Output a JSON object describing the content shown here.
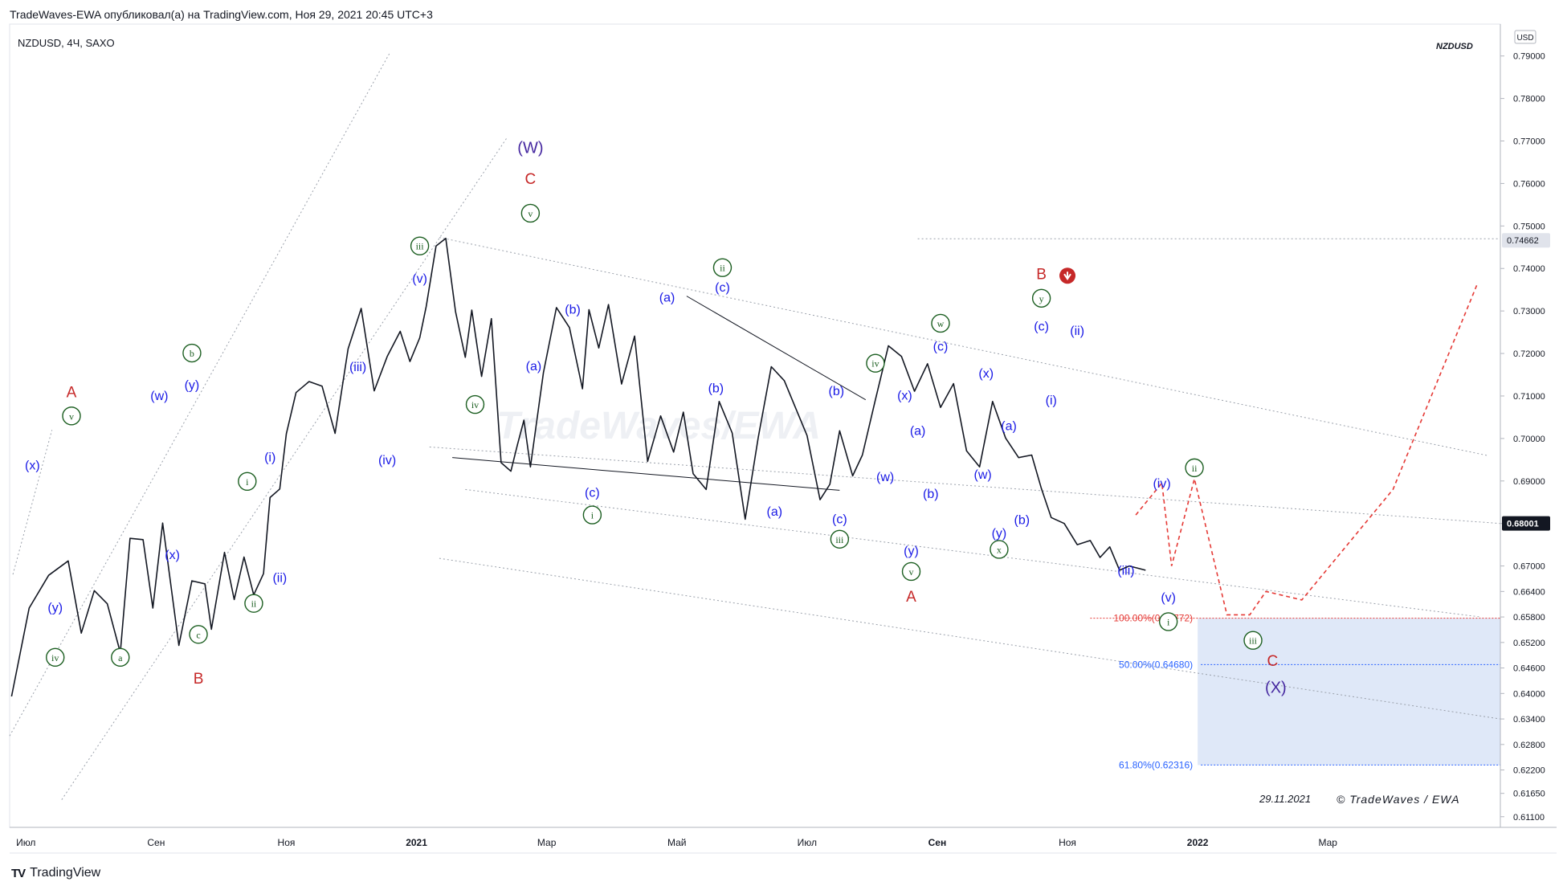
{
  "header": {
    "text": "TradeWaves-EWA опубликовал(а) на TradingView.com, Ноя 29, 2021 20:45 UTC+3",
    "symbol": "NZDUSD, 4Ч, SAXO",
    "corner_symbol": "NZDUSD",
    "currency": "USD",
    "date_stamp": "29.11.2021",
    "copyright": "© TradeWaves / EWA",
    "watermark": "TradeWaves/EWA",
    "footer": "TradingView"
  },
  "chart_data": {
    "type": "line",
    "title": "NZDUSD, 4Ч, SAXO",
    "ylim": [
      0.6085,
      0.7975
    ],
    "yticks": [
      "0.79000",
      "0.78000",
      "0.77000",
      "0.76000",
      "0.75000",
      "0.74000",
      "0.73000",
      "0.72000",
      "0.71000",
      "0.70000",
      "0.69000",
      "0.68000",
      "0.67000",
      "0.66400",
      "0.65800",
      "0.65200",
      "0.64600",
      "0.64000",
      "0.63400",
      "0.62800",
      "0.62200",
      "0.61650",
      "0.61100"
    ],
    "ytick_values": [
      0.79,
      0.78,
      0.77,
      0.76,
      0.75,
      0.74,
      0.73,
      0.72,
      0.71,
      0.7,
      0.69,
      0.68,
      0.67,
      0.664,
      0.658,
      0.652,
      0.646,
      0.64,
      0.634,
      0.628,
      0.622,
      0.6165,
      0.611
    ],
    "xticks": [
      "Июл",
      "Сен",
      "Ноя",
      "2021",
      "Мар",
      "Май",
      "Июл",
      "Сен",
      "Ноя",
      "2022",
      "Мар"
    ],
    "xtick_bold": [
      false,
      false,
      false,
      true,
      false,
      false,
      false,
      true,
      false,
      true,
      false
    ],
    "xtick_t": [
      0.5,
      2.5,
      4.5,
      6.5,
      8.5,
      10.5,
      12.5,
      14.5,
      16.5,
      18.5,
      20.5
    ],
    "xlim": [
      0.25,
      23.15
    ],
    "price_labels": [
      {
        "label": "0.74662",
        "value": 0.74662,
        "style": "light"
      },
      {
        "label": "0.68001",
        "value": 0.68001,
        "style": "dark"
      }
    ],
    "series": [
      {
        "name": "NZDUSD",
        "x": [
          0.28,
          0.55,
          0.85,
          1.15,
          1.35,
          1.55,
          1.75,
          1.95,
          2.1,
          2.3,
          2.45,
          2.6,
          2.85,
          3.05,
          3.25,
          3.35,
          3.55,
          3.7,
          3.85,
          4.0,
          4.15,
          4.25,
          4.4,
          4.5,
          4.65,
          4.85,
          5.05,
          5.25,
          5.45,
          5.65,
          5.85,
          6.05,
          6.25,
          6.4,
          6.55,
          6.65,
          6.8,
          6.95,
          7.1,
          7.25,
          7.35,
          7.5,
          7.65,
          7.8,
          7.95,
          8.05,
          8.15,
          8.25,
          8.45,
          8.65,
          8.85,
          9.05,
          9.15,
          9.3,
          9.45,
          9.65,
          9.85,
          10.05,
          10.25,
          10.45,
          10.6,
          10.75,
          10.95,
          11.15,
          11.35,
          11.55,
          11.75,
          11.95,
          12.15,
          12.35,
          12.5,
          12.7,
          12.85,
          13.0,
          13.2,
          13.35,
          13.55,
          13.75,
          13.95,
          14.15,
          14.35,
          14.55,
          14.75,
          14.95,
          15.15,
          15.35,
          15.55,
          15.75,
          15.95,
          16.1,
          16.25,
          16.45,
          16.65,
          16.85,
          17.0,
          17.15,
          17.3,
          17.45,
          17.7
        ],
        "values": [
          0.6393,
          0.6601,
          0.6678,
          0.6712,
          0.6542,
          0.6642,
          0.6611,
          0.6496,
          0.6765,
          0.6762,
          0.6601,
          0.6801,
          0.6513,
          0.6665,
          0.6658,
          0.6551,
          0.6732,
          0.6621,
          0.6721,
          0.6632,
          0.6682,
          0.6861,
          0.6881,
          0.7011,
          0.7108,
          0.7134,
          0.7123,
          0.7012,
          0.7211,
          0.7306,
          0.7112,
          0.7193,
          0.7252,
          0.7181,
          0.7237,
          0.7311,
          0.7453,
          0.7471,
          0.7298,
          0.7191,
          0.7302,
          0.7146,
          0.7282,
          0.6943,
          0.6923,
          0.6985,
          0.7043,
          0.6933,
          0.7155,
          0.7308,
          0.7261,
          0.7117,
          0.7303,
          0.7213,
          0.7315,
          0.7128,
          0.7241,
          0.6946,
          0.7053,
          0.6968,
          0.7062,
          0.6917,
          0.688,
          0.7087,
          0.7013,
          0.681,
          0.7003,
          0.7169,
          0.7136,
          0.7062,
          0.7007,
          0.6856,
          0.6892,
          0.7018,
          0.6912,
          0.6961,
          0.7091,
          0.7218,
          0.7193,
          0.7111,
          0.7176,
          0.7073,
          0.7129,
          0.6971,
          0.6933,
          0.7087,
          0.7001,
          0.6955,
          0.6961,
          0.6882,
          0.6814,
          0.68,
          0.675,
          0.676,
          0.672,
          0.6745,
          0.669,
          0.67,
          0.669
        ]
      }
    ],
    "annotations": [
      {
        "text": "A",
        "style": "red",
        "t": 1.2,
        "v": 0.7108
      },
      {
        "text": "v",
        "style": "circle",
        "t": 1.2,
        "v": 0.7053
      },
      {
        "text": "(x)",
        "style": "blue",
        "t": 0.6,
        "v": 0.6938
      },
      {
        "text": "(y)",
        "style": "blue",
        "t": 0.95,
        "v": 0.6604
      },
      {
        "text": "iv",
        "style": "circle",
        "t": 0.95,
        "v": 0.6485
      },
      {
        "text": "a",
        "style": "circle",
        "t": 1.95,
        "v": 0.6485
      },
      {
        "text": "(w)",
        "style": "blue",
        "t": 2.55,
        "v": 0.7102
      },
      {
        "text": "(x)",
        "style": "blue",
        "t": 2.75,
        "v": 0.6728
      },
      {
        "text": "b",
        "style": "circle",
        "t": 3.05,
        "v": 0.7201
      },
      {
        "text": "(y)",
        "style": "blue",
        "t": 3.05,
        "v": 0.7127
      },
      {
        "text": "c",
        "style": "circle",
        "t": 3.15,
        "v": 0.6539
      },
      {
        "text": "B",
        "style": "red",
        "t": 3.15,
        "v": 0.6435
      },
      {
        "text": "i",
        "style": "circle",
        "t": 3.9,
        "v": 0.6899
      },
      {
        "text": "ii",
        "style": "circle",
        "t": 4.0,
        "v": 0.6612
      },
      {
        "text": "(i)",
        "style": "blue",
        "t": 4.25,
        "v": 0.6957
      },
      {
        "text": "(ii)",
        "style": "blue",
        "t": 4.4,
        "v": 0.6674
      },
      {
        "text": "(iii)",
        "style": "blue",
        "t": 5.6,
        "v": 0.717
      },
      {
        "text": "(iv)",
        "style": "blue",
        "t": 6.05,
        "v": 0.6951
      },
      {
        "text": "(v)",
        "style": "blue",
        "t": 6.55,
        "v": 0.7378
      },
      {
        "text": "iii",
        "style": "circle",
        "t": 6.55,
        "v": 0.7453
      },
      {
        "text": "iv",
        "style": "circle",
        "t": 7.4,
        "v": 0.708
      },
      {
        "text": "(W)",
        "style": "purple",
        "t": 8.25,
        "v": 0.7683
      },
      {
        "text": "C",
        "style": "red",
        "t": 8.25,
        "v": 0.761
      },
      {
        "text": "v",
        "style": "circle",
        "t": 8.25,
        "v": 0.753
      },
      {
        "text": "(a)",
        "style": "blue",
        "t": 8.3,
        "v": 0.7172
      },
      {
        "text": "(b)",
        "style": "blue",
        "t": 8.9,
        "v": 0.7305
      },
      {
        "text": "(c)",
        "style": "blue",
        "t": 9.2,
        "v": 0.6874
      },
      {
        "text": "i",
        "style": "circle",
        "t": 9.2,
        "v": 0.682
      },
      {
        "text": "(a)",
        "style": "blue",
        "t": 10.35,
        "v": 0.7333
      },
      {
        "text": "ii",
        "style": "circle",
        "t": 11.2,
        "v": 0.7402
      },
      {
        "text": "(c)",
        "style": "blue",
        "t": 11.2,
        "v": 0.7357
      },
      {
        "text": "(b)",
        "style": "blue",
        "t": 11.1,
        "v": 0.712
      },
      {
        "text": "(a)",
        "style": "blue",
        "t": 12.0,
        "v": 0.683
      },
      {
        "text": "(b)",
        "style": "blue",
        "t": 12.95,
        "v": 0.7113
      },
      {
        "text": "(c)",
        "style": "blue",
        "t": 13.0,
        "v": 0.6812
      },
      {
        "text": "iii",
        "style": "circle",
        "t": 13.0,
        "v": 0.6763
      },
      {
        "text": "iv",
        "style": "circle",
        "t": 13.55,
        "v": 0.7177
      },
      {
        "text": "(x)",
        "style": "blue",
        "t": 14.0,
        "v": 0.7103
      },
      {
        "text": "(w)",
        "style": "blue",
        "t": 13.7,
        "v": 0.6911
      },
      {
        "text": "(a)",
        "style": "blue",
        "t": 14.2,
        "v": 0.702
      },
      {
        "text": "(b)",
        "style": "blue",
        "t": 14.4,
        "v": 0.6871
      },
      {
        "text": "(y)",
        "style": "blue",
        "t": 14.1,
        "v": 0.6737
      },
      {
        "text": "v",
        "style": "circle",
        "t": 14.1,
        "v": 0.6687
      },
      {
        "text": "A",
        "style": "red",
        "t": 14.1,
        "v": 0.6627
      },
      {
        "text": "w",
        "style": "circle",
        "t": 14.55,
        "v": 0.7271
      },
      {
        "text": "(c)",
        "style": "blue",
        "t": 14.55,
        "v": 0.7218
      },
      {
        "text": "(x)",
        "style": "blue",
        "t": 15.25,
        "v": 0.7155
      },
      {
        "text": "(w)",
        "style": "blue",
        "t": 15.2,
        "v": 0.6917
      },
      {
        "text": "(a)",
        "style": "blue",
        "t": 15.6,
        "v": 0.7031
      },
      {
        "text": "(b)",
        "style": "blue",
        "t": 15.8,
        "v": 0.681
      },
      {
        "text": "(y)",
        "style": "blue",
        "t": 15.45,
        "v": 0.6779
      },
      {
        "text": "x",
        "style": "circle",
        "t": 15.45,
        "v": 0.6739
      },
      {
        "text": "B",
        "style": "red",
        "t": 16.1,
        "v": 0.7386
      },
      {
        "text": "y",
        "style": "circle",
        "t": 16.1,
        "v": 0.733
      },
      {
        "text": "(c)",
        "style": "blue",
        "t": 16.1,
        "v": 0.7265
      },
      {
        "text": "(ii)",
        "style": "blue",
        "t": 16.65,
        "v": 0.7255
      },
      {
        "text": "(i)",
        "style": "blue",
        "t": 16.25,
        "v": 0.7091
      },
      {
        "text": "(iv)",
        "style": "blue",
        "t": 17.95,
        "v": 0.6896
      },
      {
        "text": "ii",
        "style": "circle",
        "t": 18.45,
        "v": 0.6931
      },
      {
        "text": "(iii)",
        "style": "blue",
        "t": 17.4,
        "v": 0.6691
      },
      {
        "text": "(v)",
        "style": "blue",
        "t": 18.05,
        "v": 0.6627
      },
      {
        "text": "i",
        "style": "circle",
        "t": 18.05,
        "v": 0.6569
      },
      {
        "text": "iii",
        "style": "circle",
        "t": 19.35,
        "v": 0.6525
      },
      {
        "text": "C",
        "style": "red",
        "t": 19.65,
        "v": 0.6476
      },
      {
        "text": "(X)",
        "style": "purple",
        "t": 19.7,
        "v": 0.6413
      }
    ],
    "fib_levels": [
      {
        "label": "100.00%(0.65772)",
        "value": 0.65772,
        "style": "red"
      },
      {
        "label": "50.00%(0.64680)",
        "value": 0.6468,
        "style": "blue"
      },
      {
        "label": "61.80%(0.62316)",
        "value": 0.62316,
        "style": "blue"
      }
    ],
    "target_box": {
      "t0": 18.5,
      "t1": 23.15,
      "v_top": 0.65772,
      "v_bottom": 0.62316
    },
    "projection": {
      "t": [
        17.55,
        17.95,
        18.1,
        18.45,
        18.95,
        19.3,
        19.55,
        20.1,
        21.5,
        22.8
      ],
      "values": [
        0.682,
        0.6895,
        0.67,
        0.6905,
        0.6585,
        0.6585,
        0.664,
        0.662,
        0.688,
        0.7365
      ]
    }
  }
}
